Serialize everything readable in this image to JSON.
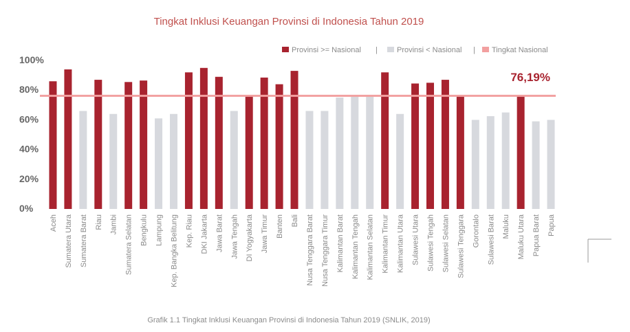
{
  "chart_data": {
    "type": "bar",
    "title": "Tingkat Inklusi Keuangan Provinsi di Indonesia Tahun 2019",
    "caption": "Grafik 1.1 Tingkat Inklusi Keuangan Provinsi di Indonesia Tahun 2019 (SNLIK, 2019)",
    "ylim": [
      0,
      100
    ],
    "yticks": [
      "0%",
      "20%",
      "40%",
      "60%",
      "80%",
      "100%"
    ],
    "legend": {
      "above": "Provinsi >= Nasional",
      "below": "Provinsi < Nasional",
      "national": "Tingkat Nasional",
      "separator": "|",
      "placement": "top-right"
    },
    "national_value": 76.19,
    "national_label": "76,19%",
    "colors": {
      "above": "#a8232f",
      "below": "#d7d9de",
      "national": "#f2a0a0"
    },
    "categories": [
      "Aceh",
      "Sumatera Utara",
      "Sumatera Barat",
      "Riau",
      "Jambi",
      "Sumatera Selatan",
      "Bengkulu",
      "Lampung",
      "Kep. Bangka Belitung",
      "Kep. Riau",
      "DKI Jakarta",
      "Jawa Barat",
      "Jawa Tengah",
      "DI Yogyakarta",
      "Jawa Timur",
      "Banten",
      "Bali",
      "Nusa Tenggara Barat",
      "Nusa Tenggara Timur",
      "Kalimantan Barat",
      "Kalimantan Tengah",
      "Kalimantan Selatan",
      "Kalimantan Timur",
      "Kalimantan Utara",
      "Sulawesi Utara",
      "Sulawesi Tengah",
      "Sulawesi Selatan",
      "Sulawesi Tenggara",
      "Gorontalo",
      "Sulawesi Barat",
      "Maluku",
      "Maluku Utara",
      "Papua Barat",
      "Papua"
    ],
    "values": [
      86,
      94,
      66,
      87,
      64,
      85.5,
      86.5,
      61,
      64,
      92,
      95,
      89,
      66,
      76.5,
      88.5,
      84,
      93,
      66,
      66,
      75,
      76,
      76,
      92,
      64,
      84.5,
      85,
      87,
      76.5,
      60,
      62.5,
      65,
      76.5,
      59,
      60
    ],
    "groups": [
      "above",
      "above",
      "below",
      "above",
      "below",
      "above",
      "above",
      "below",
      "below",
      "above",
      "above",
      "above",
      "below",
      "above",
      "above",
      "above",
      "above",
      "below",
      "below",
      "below",
      "below",
      "below",
      "above",
      "below",
      "above",
      "above",
      "above",
      "above",
      "below",
      "below",
      "below",
      "above",
      "below",
      "below"
    ]
  }
}
